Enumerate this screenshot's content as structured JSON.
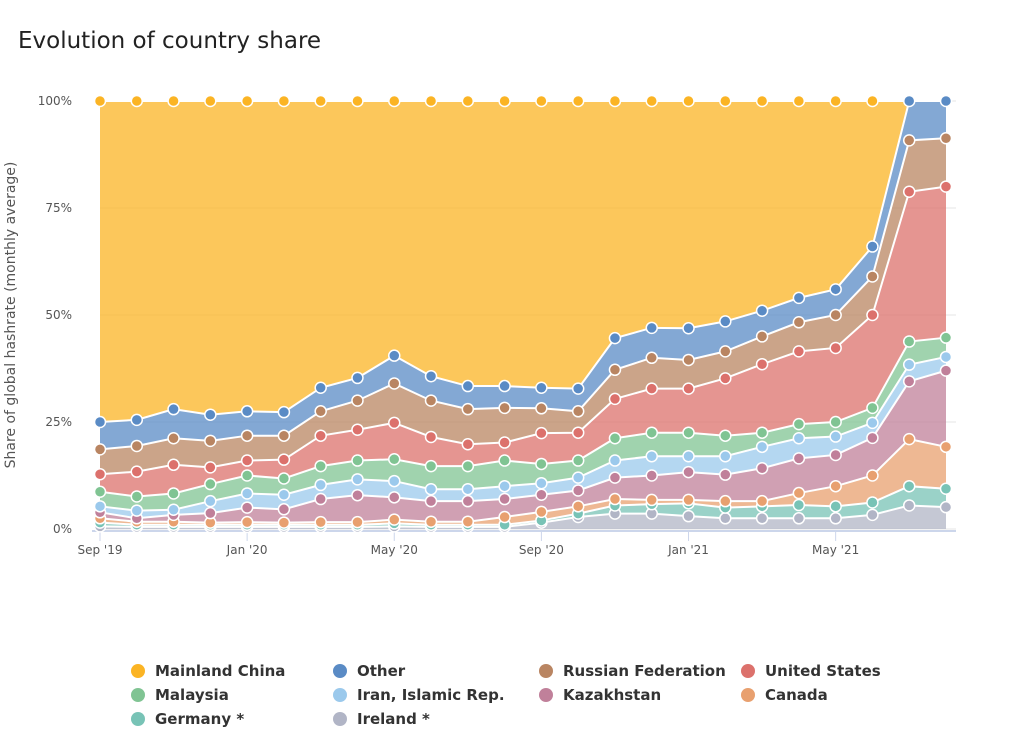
{
  "chart_data": {
    "type": "area",
    "stacked": true,
    "title": "Evolution of country share",
    "ylabel": "Share of global hashrate (monthly average)",
    "xlabel": "",
    "ylim": [
      0,
      100
    ],
    "y_ticks": [
      "0%",
      "25%",
      "50%",
      "75%",
      "100%"
    ],
    "y_tick_values": [
      0,
      25,
      50,
      75,
      100
    ],
    "x_ticks": [
      "Sep '19",
      "Jan '20",
      "May '20",
      "Sep '20",
      "Jan '21",
      "May '21"
    ],
    "x_tick_indices": [
      0,
      4,
      8,
      12,
      16,
      20
    ],
    "x": [
      "2019-09",
      "2019-10",
      "2019-11",
      "2019-12",
      "2020-01",
      "2020-02",
      "2020-03",
      "2020-04",
      "2020-05",
      "2020-06",
      "2020-07",
      "2020-08",
      "2020-09",
      "2020-10",
      "2020-11",
      "2020-12",
      "2021-01",
      "2021-02",
      "2021-03",
      "2021-04",
      "2021-05",
      "2021-06",
      "2021-07",
      "2021-08"
    ],
    "grid": true,
    "legend_placement": "bottom",
    "series": [
      {
        "name": "Ireland *",
        "color": "#b1b5c6",
        "values": [
          0.6,
          0.5,
          0.5,
          0.5,
          0.5,
          0.5,
          0.5,
          0.5,
          0.6,
          0.5,
          0.5,
          0.5,
          1.5,
          2.8,
          3.6,
          3.6,
          3.0,
          2.5,
          2.5,
          2.5,
          2.5,
          3.3,
          5.5,
          5.1
        ]
      },
      {
        "name": "Germany *",
        "color": "#78c3b6",
        "values": [
          0.9,
          0.5,
          0.5,
          0.5,
          0.5,
          0.5,
          0.5,
          0.5,
          0.7,
          0.5,
          0.5,
          0.5,
          0.5,
          0.8,
          1.9,
          2.2,
          3.0,
          2.5,
          2.8,
          3.1,
          2.8,
          2.9,
          4.5,
          4.3
        ]
      },
      {
        "name": "Canada",
        "color": "#e8a06f",
        "values": [
          1.0,
          0.7,
          0.7,
          0.5,
          0.6,
          0.5,
          0.6,
          0.6,
          0.9,
          0.7,
          0.7,
          1.8,
          2.0,
          1.7,
          1.5,
          1.0,
          0.8,
          1.5,
          1.2,
          2.8,
          4.7,
          6.3,
          11.0,
          9.8
        ]
      },
      {
        "name": "Kazakhstan",
        "color": "#c0809a",
        "values": [
          1.4,
          0.8,
          1.6,
          2.2,
          3.4,
          3.1,
          5.4,
          6.3,
          5.2,
          4.8,
          4.8,
          4.2,
          4.0,
          3.7,
          5.0,
          5.7,
          6.5,
          6.2,
          7.7,
          8.1,
          7.3,
          8.8,
          13.5,
          17.8
        ]
      },
      {
        "name": "Iran, Islamic Rep.",
        "color": "#9bc9ec",
        "values": [
          1.4,
          1.8,
          1.2,
          2.8,
          3.3,
          3.4,
          3.3,
          3.7,
          3.8,
          2.8,
          2.8,
          3.0,
          2.7,
          3.0,
          4.0,
          4.5,
          3.7,
          4.3,
          5.0,
          4.7,
          4.3,
          3.5,
          3.9,
          3.2
        ]
      },
      {
        "name": "Malaysia",
        "color": "#80c493",
        "values": [
          3.4,
          3.3,
          3.8,
          4.0,
          4.2,
          3.8,
          4.4,
          4.4,
          5.1,
          5.4,
          5.4,
          6.0,
          4.5,
          4.0,
          5.2,
          5.5,
          5.5,
          4.8,
          3.3,
          3.3,
          3.4,
          3.5,
          5.4,
          4.5
        ]
      },
      {
        "name": "United States",
        "color": "#dc716c",
        "values": [
          4.1,
          5.8,
          6.7,
          3.9,
          3.5,
          4.4,
          7.1,
          7.2,
          8.5,
          6.8,
          5.1,
          4.2,
          7.2,
          6.5,
          9.2,
          10.3,
          10.3,
          13.4,
          16.0,
          17.0,
          17.3,
          21.7,
          35.0,
          35.3
        ]
      },
      {
        "name": "Russian Federation",
        "color": "#b98562",
        "values": [
          5.8,
          6.0,
          6.2,
          6.2,
          5.8,
          5.6,
          5.7,
          6.8,
          9.2,
          8.5,
          8.2,
          8.1,
          5.8,
          5.0,
          6.8,
          7.2,
          6.7,
          6.3,
          6.5,
          6.8,
          7.7,
          9.0,
          12.0,
          11.3
        ]
      },
      {
        "name": "Other",
        "color": "#5a8bc5",
        "values": [
          6.4,
          6.1,
          6.8,
          6.1,
          5.7,
          5.5,
          5.5,
          5.3,
          6.5,
          5.7,
          5.4,
          5.1,
          4.8,
          5.3,
          7.4,
          7.0,
          7.4,
          7.0,
          6.0,
          5.7,
          6.0,
          7.0,
          9.2,
          8.7
        ]
      },
      {
        "name": "Mainland China",
        "color": "#fbb424",
        "values": [
          75.0,
          74.5,
          72.0,
          73.3,
          72.5,
          72.7,
          67.0,
          64.7,
          59.5,
          64.3,
          66.6,
          66.6,
          67.0,
          67.2,
          55.4,
          53.0,
          53.1,
          51.5,
          49.0,
          46.0,
          44.0,
          34.0,
          0,
          0
        ]
      }
    ],
    "legend_order": [
      "Mainland China",
      "Other",
      "Russian Federation",
      "United States",
      "Malaysia",
      "Iran, Islamic Rep.",
      "Kazakhstan",
      "Canada",
      "Germany *",
      "Ireland *"
    ]
  }
}
